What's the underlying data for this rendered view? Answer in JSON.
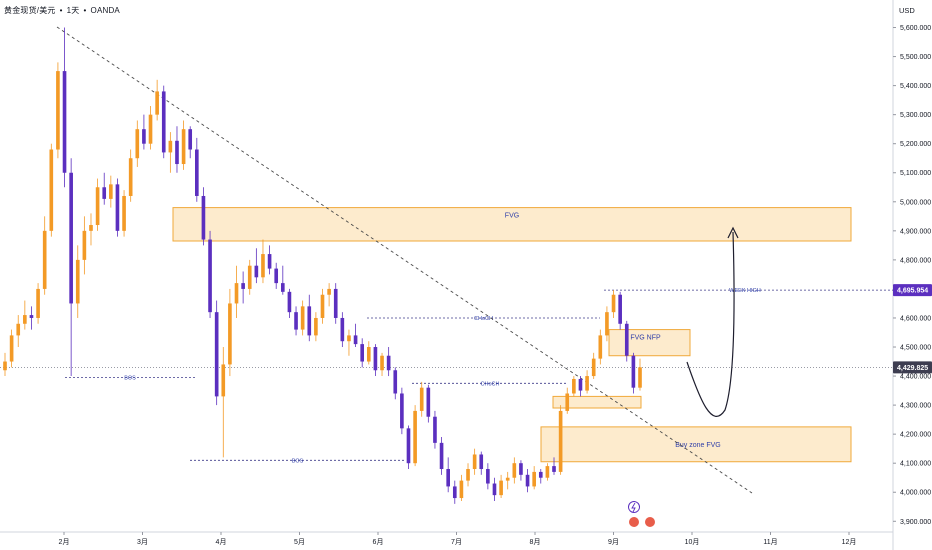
{
  "header": {
    "symbol": "黄金现货/美元",
    "separator": "•",
    "interval": "1天",
    "broker": "OANDA",
    "currency": "USD"
  },
  "colors": {
    "up_candle": "#f39a26",
    "down_candle": "#5b2fbf",
    "zone_fill": "#fde7c4",
    "zone_stroke": "#f0a93a",
    "dashed_line": "#3f3b8a",
    "trendline": "#4a4a4a",
    "label_text": "#2f3ea8",
    "badge_week_high": "#5b2fbf",
    "badge_current": "#3d3d50"
  },
  "chart_data": {
    "type": "candlestick",
    "title": "",
    "y_axis": {
      "min": 3870,
      "max": 5650,
      "ticks": [
        "5,600.000",
        "5,500.000",
        "5,400.000",
        "5,300.000",
        "5,200.000",
        "5,100.000",
        "5,000.000",
        "4,900.000",
        "4,800.000",
        "4,700.000",
        "4,600.000",
        "4,500.000",
        "4,400.000",
        "4,300.000",
        "4,200.000",
        "4,100.000",
        "4,000.000",
        "3,900.000"
      ],
      "tick_values": [
        5600,
        5500,
        5400,
        5300,
        5200,
        5100,
        5000,
        4900,
        4800,
        4700,
        4600,
        4500,
        4400,
        4300,
        4200,
        4100,
        4000,
        3900
      ]
    },
    "x_axis": {
      "labels": [
        "2月",
        "3月",
        "4月",
        "5月",
        "6月",
        "7月",
        "8月",
        "9月",
        "10月",
        "11月",
        "12月"
      ]
    },
    "price_labels": {
      "week_high": {
        "value": 4695.954,
        "text": "4,695.954"
      },
      "current": {
        "value": 4429.825,
        "text": "4,429.825"
      }
    },
    "zones": [
      {
        "name": "FVG",
        "label": "FVG",
        "top": 4980,
        "bottom": 4865
      },
      {
        "name": "FVG NFP",
        "label": "FVG NFP",
        "top": 4560,
        "bottom": 4470
      },
      {
        "name": "small-zone",
        "label": "",
        "top": 4330,
        "bottom": 4290
      },
      {
        "name": "Buy zone FVG",
        "label": "Buy zone FVG",
        "top": 4225,
        "bottom": 4105
      }
    ],
    "levels": [
      {
        "label": "BOS",
        "value": 4395
      },
      {
        "label": "BOS",
        "value": 4110
      },
      {
        "label": "CHoCH",
        "value": 4600
      },
      {
        "label": "CHoCH",
        "value": 4375
      },
      {
        "label": "WEEK HIGH",
        "value": 4695.954
      }
    ],
    "candles": [
      [
        4420,
        4480,
        4400,
        4450
      ],
      [
        4450,
        4560,
        4430,
        4540
      ],
      [
        4540,
        4610,
        4500,
        4580
      ],
      [
        4580,
        4660,
        4560,
        4610
      ],
      [
        4610,
        4640,
        4560,
        4600
      ],
      [
        4600,
        4720,
        4580,
        4700
      ],
      [
        4700,
        4950,
        4680,
        4900
      ],
      [
        4900,
        5200,
        4880,
        5180
      ],
      [
        5180,
        5480,
        5150,
        5450
      ],
      [
        5450,
        5600,
        5050,
        5100
      ],
      [
        5100,
        5150,
        4400,
        4650
      ],
      [
        4650,
        4850,
        4600,
        4800
      ],
      [
        4800,
        4950,
        4750,
        4900
      ],
      [
        4900,
        4960,
        4850,
        4920
      ],
      [
        4920,
        5080,
        4900,
        5050
      ],
      [
        5050,
        5100,
        4990,
        5010
      ],
      [
        5010,
        5090,
        4980,
        5060
      ],
      [
        5060,
        5080,
        4880,
        4900
      ],
      [
        4900,
        5040,
        4880,
        5020
      ],
      [
        5020,
        5180,
        5000,
        5150
      ],
      [
        5150,
        5280,
        5120,
        5250
      ],
      [
        5250,
        5300,
        5180,
        5200
      ],
      [
        5200,
        5330,
        5180,
        5300
      ],
      [
        5300,
        5420,
        5280,
        5380
      ],
      [
        5380,
        5400,
        5150,
        5170
      ],
      [
        5170,
        5240,
        5100,
        5210
      ],
      [
        5210,
        5260,
        5100,
        5130
      ],
      [
        5130,
        5280,
        5110,
        5250
      ],
      [
        5250,
        5260,
        5150,
        5180
      ],
      [
        5180,
        5220,
        5000,
        5020
      ],
      [
        5020,
        5050,
        4850,
        4870
      ],
      [
        4870,
        4900,
        4600,
        4620
      ],
      [
        4620,
        4660,
        4300,
        4330
      ],
      [
        4330,
        4500,
        4120,
        4440
      ],
      [
        4440,
        4700,
        4400,
        4650
      ],
      [
        4650,
        4780,
        4600,
        4720
      ],
      [
        4720,
        4760,
        4650,
        4700
      ],
      [
        4700,
        4800,
        4680,
        4780
      ],
      [
        4780,
        4840,
        4720,
        4740
      ],
      [
        4740,
        4870,
        4720,
        4820
      ],
      [
        4820,
        4850,
        4750,
        4770
      ],
      [
        4770,
        4790,
        4700,
        4720
      ],
      [
        4720,
        4780,
        4680,
        4690
      ],
      [
        4690,
        4700,
        4600,
        4620
      ],
      [
        4620,
        4640,
        4540,
        4560
      ],
      [
        4560,
        4660,
        4540,
        4640
      ],
      [
        4640,
        4680,
        4520,
        4540
      ],
      [
        4540,
        4620,
        4520,
        4600
      ],
      [
        4600,
        4700,
        4580,
        4680
      ],
      [
        4680,
        4720,
        4640,
        4700
      ],
      [
        4700,
        4720,
        4580,
        4600
      ],
      [
        4600,
        4620,
        4500,
        4520
      ],
      [
        4520,
        4560,
        4470,
        4540
      ],
      [
        4540,
        4580,
        4500,
        4510
      ],
      [
        4510,
        4530,
        4430,
        4450
      ],
      [
        4450,
        4520,
        4440,
        4500
      ],
      [
        4500,
        4510,
        4400,
        4420
      ],
      [
        4420,
        4480,
        4400,
        4470
      ],
      [
        4470,
        4500,
        4400,
        4420
      ],
      [
        4420,
        4430,
        4320,
        4340
      ],
      [
        4340,
        4360,
        4200,
        4220
      ],
      [
        4220,
        4230,
        4080,
        4100
      ],
      [
        4100,
        4300,
        4090,
        4280
      ],
      [
        4280,
        4380,
        4260,
        4360
      ],
      [
        4360,
        4370,
        4240,
        4260
      ],
      [
        4260,
        4280,
        4150,
        4170
      ],
      [
        4170,
        4190,
        4060,
        4080
      ],
      [
        4080,
        4120,
        4000,
        4020
      ],
      [
        4020,
        4040,
        3960,
        3980
      ],
      [
        3980,
        4060,
        3970,
        4040
      ],
      [
        4040,
        4100,
        4020,
        4080
      ],
      [
        4080,
        4150,
        4060,
        4130
      ],
      [
        4130,
        4140,
        4060,
        4080
      ],
      [
        4080,
        4100,
        4010,
        4030
      ],
      [
        4030,
        4050,
        3970,
        3990
      ],
      [
        3990,
        4060,
        3980,
        4040
      ],
      [
        4040,
        4070,
        4010,
        4050
      ],
      [
        4050,
        4120,
        4030,
        4100
      ],
      [
        4100,
        4110,
        4040,
        4060
      ],
      [
        4060,
        4080,
        4000,
        4020
      ],
      [
        4020,
        4090,
        4010,
        4070
      ],
      [
        4070,
        4080,
        4030,
        4050
      ],
      [
        4050,
        4100,
        4040,
        4090
      ],
      [
        4090,
        4120,
        4060,
        4070
      ],
      [
        4070,
        4300,
        4060,
        4280
      ],
      [
        4280,
        4360,
        4270,
        4340
      ],
      [
        4340,
        4400,
        4330,
        4390
      ],
      [
        4390,
        4400,
        4330,
        4350
      ],
      [
        4350,
        4420,
        4340,
        4400
      ],
      [
        4400,
        4480,
        4390,
        4460
      ],
      [
        4460,
        4560,
        4440,
        4540
      ],
      [
        4540,
        4640,
        4520,
        4620
      ],
      [
        4620,
        4696,
        4600,
        4680
      ],
      [
        4680,
        4690,
        4560,
        4580
      ],
      [
        4580,
        4590,
        4450,
        4470
      ],
      [
        4470,
        4480,
        4340,
        4360
      ],
      [
        4360,
        4460,
        4350,
        4430
      ]
    ]
  }
}
